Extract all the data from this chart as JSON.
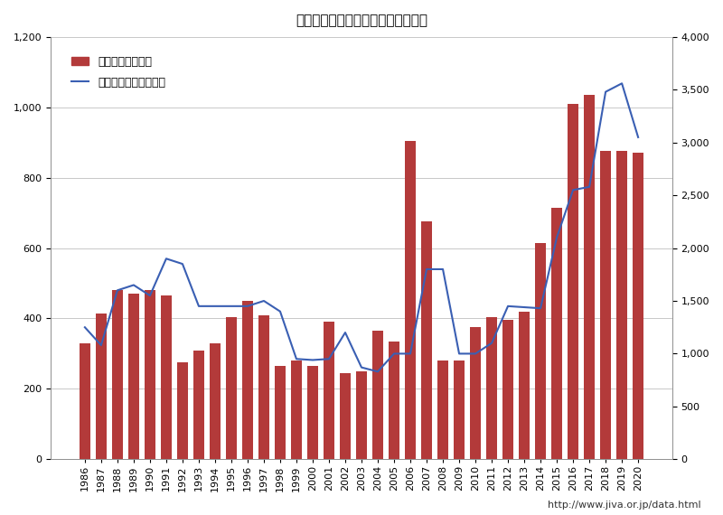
{
  "title": "無人搬送車システム納入実績の推移",
  "years": [
    1986,
    1987,
    1988,
    1989,
    1990,
    1991,
    1992,
    1993,
    1994,
    1995,
    1996,
    1997,
    1998,
    1999,
    2000,
    2001,
    2002,
    2003,
    2004,
    2005,
    2006,
    2007,
    2008,
    2009,
    2010,
    2011,
    2012,
    2013,
    2014,
    2015,
    2016,
    2017,
    2018,
    2019,
    2020
  ],
  "bars": [
    330,
    415,
    480,
    470,
    480,
    465,
    275,
    310,
    330,
    405,
    450,
    410,
    265,
    280,
    265,
    390,
    245,
    250,
    365,
    335,
    905,
    675,
    280,
    280,
    375,
    405,
    395,
    420,
    615,
    715,
    1010,
    1035,
    875,
    875,
    870
  ],
  "line": [
    1250,
    1080,
    1600,
    1650,
    1550,
    1900,
    1850,
    1450,
    1450,
    1450,
    1450,
    1500,
    1400,
    950,
    940,
    950,
    1200,
    870,
    830,
    1000,
    1000,
    1800,
    1800,
    1000,
    1000,
    1100,
    1450,
    1440,
    1430,
    2100,
    2550,
    2580,
    3480,
    3560,
    3050
  ],
  "bar_color": "#b33a3a",
  "line_color": "#3a5fb3",
  "left_ylim": [
    0,
    1200
  ],
  "right_ylim": [
    0,
    4000
  ],
  "left_yticks": [
    0,
    200,
    400,
    600,
    800,
    1000,
    1200
  ],
  "right_yticks": [
    0,
    500,
    1000,
    1500,
    2000,
    2500,
    3000,
    3500,
    4000
  ],
  "legend_bar": "台数（右目盛り）",
  "legend_line": "システム数（左目盛）",
  "url_text": "http://www.jiva.or.jp/data.html",
  "bg_color": "#ffffff",
  "plot_bg_color": "#ffffff"
}
